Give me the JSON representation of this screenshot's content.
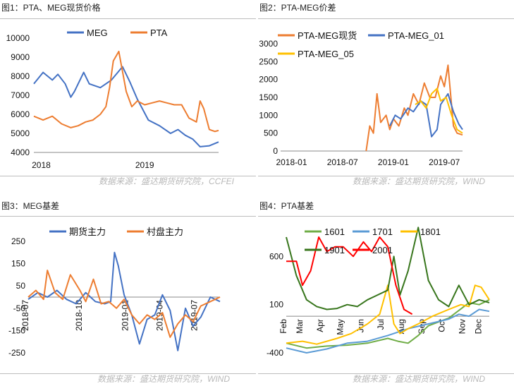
{
  "sources": {
    "top": "数据来源：盛达期货研究院，CCFEI",
    "top_right": "数据来源：盛达期货研究院，WIND",
    "bottom_left": "数据来源：盛达期货研究院，WIND",
    "bottom_right": "数据来源：盛达期货研究院，WIND"
  },
  "chart_data": [
    {
      "id": "c1",
      "title": "图1：PTA、MEG现货价格",
      "type": "line",
      "ylim": [
        4000,
        10000
      ],
      "yticks": [
        "4000",
        "5000",
        "6000",
        "7000",
        "8000",
        "9000",
        "10000"
      ],
      "xtick_labels": [
        "2018",
        "2019"
      ],
      "legend_position": "top",
      "series": [
        {
          "name": "MEG",
          "color": "#4472c4",
          "x": [
            0,
            0.05,
            0.1,
            0.13,
            0.17,
            0.2,
            0.22,
            0.27,
            0.3,
            0.36,
            0.42,
            0.48,
            0.52,
            0.56,
            0.62,
            0.68,
            0.74,
            0.78,
            0.82,
            0.86,
            0.9,
            0.95,
            1.0
          ],
          "values": [
            7600,
            8200,
            7800,
            8100,
            7600,
            6900,
            7200,
            8200,
            7600,
            7400,
            7800,
            8500,
            7700,
            6800,
            5700,
            5400,
            5000,
            5200,
            4900,
            4700,
            4300,
            4350,
            4550
          ]
        },
        {
          "name": "PTA",
          "color": "#ed7d31",
          "x": [
            0,
            0.05,
            0.1,
            0.15,
            0.2,
            0.24,
            0.28,
            0.32,
            0.36,
            0.39,
            0.41,
            0.43,
            0.46,
            0.5,
            0.53,
            0.56,
            0.6,
            0.64,
            0.68,
            0.72,
            0.76,
            0.8,
            0.84,
            0.88,
            0.9,
            0.92,
            0.95,
            0.98,
            1.0
          ],
          "values": [
            5900,
            5700,
            5900,
            5500,
            5300,
            5400,
            5600,
            5700,
            6000,
            6400,
            7400,
            8800,
            9300,
            7200,
            6400,
            6700,
            6500,
            6600,
            6700,
            6600,
            6500,
            6500,
            5800,
            5600,
            6700,
            6300,
            5200,
            5100,
            5150
          ]
        }
      ]
    },
    {
      "id": "c2",
      "title": "图2：PTA-MEG价差",
      "type": "line",
      "ylim": [
        0,
        3000
      ],
      "yticks": [
        "0",
        "500",
        "1000",
        "1500",
        "2000",
        "2500",
        "3000"
      ],
      "xtick_labels": [
        "2018-01",
        "2018-07",
        "2019-01",
        "2019-07"
      ],
      "legend_position": "top",
      "series": [
        {
          "name": "PTA-MEG现货",
          "color": "#ed7d31",
          "x": [
            0.47,
            0.49,
            0.51,
            0.53,
            0.55,
            0.58,
            0.6,
            0.62,
            0.65,
            0.68,
            0.7,
            0.73,
            0.76,
            0.79,
            0.82,
            0.85,
            0.88,
            0.9,
            0.92,
            0.95,
            0.97,
            1.0
          ],
          "values": [
            0,
            700,
            500,
            1600,
            800,
            1000,
            600,
            900,
            700,
            1200,
            1000,
            1600,
            1300,
            1900,
            1500,
            1500,
            2100,
            1800,
            2400,
            700,
            500,
            450
          ]
        },
        {
          "name": "PTA-MEG_01",
          "color": "#4472c4",
          "x": [
            0.6,
            0.63,
            0.66,
            0.7,
            0.73,
            0.77,
            0.8,
            0.83,
            0.86,
            0.88,
            0.92,
            0.95,
            0.98,
            1.0
          ],
          "values": [
            700,
            1000,
            900,
            1200,
            1100,
            1400,
            1300,
            400,
            600,
            1300,
            1600,
            1100,
            750,
            600
          ]
        },
        {
          "name": "PTA-MEG_05",
          "color": "#ffc000",
          "x": [
            0.74,
            0.77,
            0.8,
            0.83,
            0.86,
            0.88,
            0.91,
            0.94,
            0.97,
            1.0
          ],
          "values": [
            1300,
            1400,
            1200,
            1600,
            1750,
            1400,
            1500,
            1000,
            600,
            500
          ]
        }
      ]
    },
    {
      "id": "c3",
      "title": "图3：MEG基差",
      "type": "line",
      "ylim": [
        -250,
        250
      ],
      "yticks": [
        "250",
        "150",
        "50",
        "-50",
        "-150",
        "-250"
      ],
      "xtick_labels": [
        "2018-07",
        "2018-10",
        "2019-01",
        "2019-04",
        "2019-07"
      ],
      "legend_position": "top",
      "series": [
        {
          "name": "期货主力",
          "color": "#4472c4",
          "x": [
            0,
            0.05,
            0.1,
            0.15,
            0.2,
            0.25,
            0.3,
            0.35,
            0.4,
            0.43,
            0.45,
            0.47,
            0.5,
            0.54,
            0.58,
            0.62,
            0.66,
            0.7,
            0.74,
            0.78,
            0.82,
            0.86,
            0.9,
            0.95,
            1.0
          ],
          "values": [
            -10,
            20,
            0,
            30,
            -10,
            -30,
            20,
            -20,
            -30,
            -20,
            200,
            140,
            10,
            -80,
            -210,
            -100,
            -80,
            10,
            -60,
            -240,
            -50,
            -130,
            -90,
            0,
            -20
          ]
        },
        {
          "name": "村盘主力",
          "color": "#ed7d31",
          "x": [
            0,
            0.04,
            0.08,
            0.1,
            0.14,
            0.18,
            0.22,
            0.27,
            0.3,
            0.34,
            0.38,
            0.42,
            0.46,
            0.5,
            0.54,
            0.58,
            0.62,
            0.66,
            0.7,
            0.74,
            0.78,
            0.82,
            0.86,
            0.9,
            0.95,
            1.0
          ],
          "values": [
            0,
            30,
            -10,
            120,
            20,
            -10,
            100,
            30,
            -20,
            80,
            -30,
            -20,
            -50,
            -10,
            -80,
            -120,
            -80,
            -100,
            -70,
            -180,
            -120,
            -80,
            -110,
            -40,
            -20,
            0
          ]
        }
      ]
    },
    {
      "id": "c4",
      "title": "图4：PTA基差",
      "type": "line",
      "ylim": [
        -400,
        800
      ],
      "yticks": [
        "600",
        "100",
        "-400"
      ],
      "xtick_labels": [
        "Feb",
        "Mar",
        "Apr",
        "May",
        "Jun",
        "Jul",
        "Aug",
        "Sep",
        "Oct",
        "Nov",
        "Dec"
      ],
      "legend_position": "top",
      "series": [
        {
          "name": "1601",
          "color": "#70ad47",
          "x": [
            0,
            0.1,
            0.2,
            0.3,
            0.4,
            0.5,
            0.55,
            0.6,
            0.65,
            0.7,
            0.8,
            0.85,
            0.9,
            0.95,
            1.0
          ],
          "values": [
            -300,
            -350,
            -330,
            -320,
            -300,
            -250,
            -280,
            -300,
            -220,
            -120,
            -40,
            40,
            120,
            100,
            150
          ]
        },
        {
          "name": "1701",
          "color": "#5b9bd5",
          "x": [
            0,
            0.1,
            0.2,
            0.3,
            0.4,
            0.5,
            0.6,
            0.7,
            0.8,
            0.85,
            0.9,
            0.95,
            1.0
          ],
          "values": [
            -350,
            -400,
            -360,
            -300,
            -280,
            -220,
            -150,
            -100,
            -50,
            0,
            -20,
            50,
            30
          ]
        },
        {
          "name": "1801",
          "color": "#ffc000",
          "x": [
            0,
            0.08,
            0.15,
            0.25,
            0.32,
            0.4,
            0.46,
            0.5,
            0.53,
            0.56,
            0.6,
            0.65,
            0.72,
            0.8,
            0.86,
            0.9,
            0.93,
            0.96,
            1.0
          ],
          "values": [
            -300,
            -280,
            -310,
            -250,
            -200,
            -100,
            0,
            300,
            -100,
            -200,
            -150,
            -100,
            -20,
            50,
            100,
            80,
            300,
            280,
            150
          ]
        },
        {
          "name": "1901",
          "color": "#38761d",
          "x": [
            0,
            0.05,
            0.1,
            0.15,
            0.2,
            0.25,
            0.3,
            0.35,
            0.4,
            0.45,
            0.5,
            0.53,
            0.56,
            0.6,
            0.65,
            0.7,
            0.75,
            0.8,
            0.85,
            0.9,
            0.95,
            1.0
          ],
          "values": [
            800,
            400,
            150,
            80,
            50,
            60,
            100,
            80,
            150,
            200,
            250,
            600,
            200,
            450,
            900,
            350,
            150,
            80,
            300,
            100,
            150,
            120
          ]
        },
        {
          "name": "2001",
          "color": "#ff0000",
          "x": [
            0,
            0.05,
            0.08,
            0.12,
            0.16,
            0.2,
            0.24,
            0.28,
            0.33,
            0.38,
            0.42,
            0.46,
            0.5,
            0.54,
            0.58,
            0.62
          ],
          "values": [
            550,
            550,
            300,
            450,
            800,
            650,
            700,
            700,
            600,
            750,
            650,
            800,
            700,
            300,
            50,
            0
          ]
        }
      ]
    }
  ]
}
